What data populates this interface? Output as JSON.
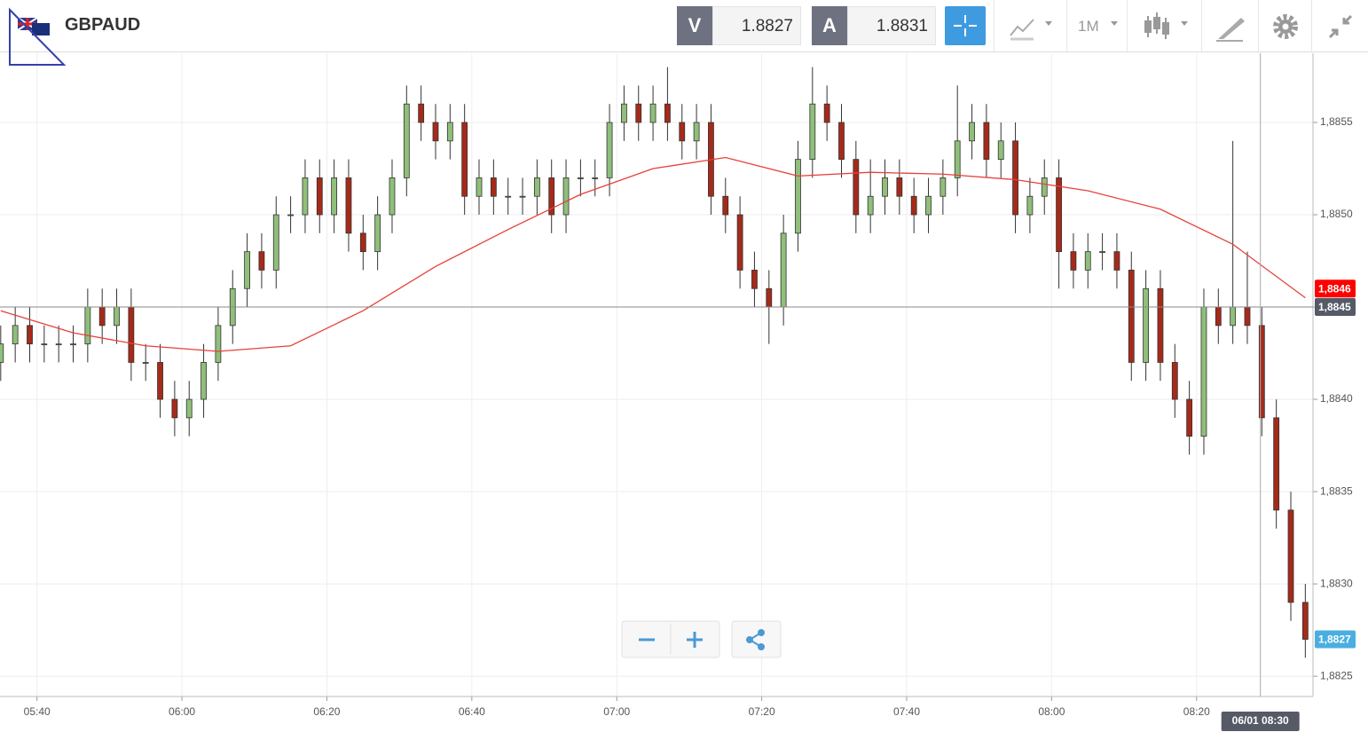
{
  "header": {
    "symbol": "GBPAUD",
    "bid_label": "V",
    "bid": 1.8827,
    "ask_label": "A",
    "ask": 1.8831,
    "timeframe": "1M"
  },
  "chart_data": {
    "type": "candlestick",
    "x": [
      335,
      337,
      339,
      341,
      343,
      345,
      347,
      349,
      351,
      353,
      355,
      357,
      359,
      361,
      363,
      365,
      367,
      369,
      371,
      373,
      375,
      377,
      379,
      381,
      383,
      385,
      387,
      389,
      391,
      393,
      395,
      397,
      399,
      401,
      403,
      405,
      407,
      409,
      411,
      413,
      415,
      417,
      419,
      421,
      423,
      425,
      427,
      429,
      431,
      433,
      435,
      437,
      439,
      441,
      443,
      445,
      447,
      449,
      451,
      453,
      455,
      457,
      459,
      461,
      463,
      465,
      467,
      469,
      471,
      473,
      475,
      477,
      479,
      481,
      483,
      485,
      487,
      489,
      491,
      493,
      495,
      497,
      499,
      501,
      503,
      505,
      507,
      509,
      511,
      513,
      515
    ],
    "open": [
      1.8842,
      1.8843,
      1.8844,
      1.8843,
      1.8843,
      1.8843,
      1.8843,
      1.8845,
      1.8844,
      1.8845,
      1.8842,
      1.8842,
      1.884,
      1.8839,
      1.884,
      1.8842,
      1.8844,
      1.8846,
      1.8848,
      1.8847,
      1.885,
      1.885,
      1.8852,
      1.885,
      1.8852,
      1.8849,
      1.8848,
      1.885,
      1.8852,
      1.8856,
      1.8855,
      1.8854,
      1.8855,
      1.8851,
      1.8852,
      1.8851,
      1.8851,
      1.8851,
      1.8852,
      1.885,
      1.8852,
      1.8852,
      1.8852,
      1.8855,
      1.8856,
      1.8855,
      1.8856,
      1.8855,
      1.8854,
      1.8855,
      1.8851,
      1.885,
      1.8847,
      1.8846,
      1.8845,
      1.8849,
      1.8853,
      1.8856,
      1.8855,
      1.8853,
      1.885,
      1.8851,
      1.8852,
      1.8851,
      1.885,
      1.8851,
      1.8852,
      1.8854,
      1.8855,
      1.8853,
      1.8854,
      1.885,
      1.8851,
      1.8852,
      1.8848,
      1.8847,
      1.8848,
      1.8848,
      1.8847,
      1.8842,
      1.8846,
      1.8842,
      1.884,
      1.8838,
      1.8845,
      1.8844,
      1.8845,
      1.8844,
      1.8839,
      1.8834,
      1.8829
    ],
    "high": [
      1.8844,
      1.8845,
      1.8845,
      1.8844,
      1.8844,
      1.8844,
      1.8846,
      1.8846,
      1.8846,
      1.8846,
      1.8843,
      1.8843,
      1.8841,
      1.8841,
      1.8843,
      1.8845,
      1.8847,
      1.8849,
      1.8849,
      1.8851,
      1.8851,
      1.8853,
      1.8853,
      1.8853,
      1.8853,
      1.885,
      1.8851,
      1.8853,
      1.8857,
      1.8857,
      1.8856,
      1.8856,
      1.8856,
      1.8853,
      1.8853,
      1.8852,
      1.8852,
      1.8853,
      1.8853,
      1.8853,
      1.8853,
      1.8853,
      1.8856,
      1.8857,
      1.8857,
      1.8857,
      1.8858,
      1.8856,
      1.8856,
      1.8856,
      1.8852,
      1.8851,
      1.8848,
      1.8847,
      1.885,
      1.8854,
      1.8858,
      1.8857,
      1.8856,
      1.8854,
      1.8853,
      1.8853,
      1.8853,
      1.8852,
      1.8852,
      1.8853,
      1.8857,
      1.8856,
      1.8856,
      1.8855,
      1.8855,
      1.8852,
      1.8853,
      1.8853,
      1.8849,
      1.8849,
      1.8849,
      1.8849,
      1.8848,
      1.8847,
      1.8847,
      1.8843,
      1.8841,
      1.8846,
      1.8846,
      1.8854,
      1.8848,
      1.8845,
      1.884,
      1.8835,
      1.883
    ],
    "low": [
      1.8841,
      1.8842,
      1.8842,
      1.8842,
      1.8842,
      1.8842,
      1.8842,
      1.8843,
      1.8843,
      1.8841,
      1.8841,
      1.8839,
      1.8838,
      1.8838,
      1.8839,
      1.8841,
      1.8843,
      1.8845,
      1.8846,
      1.8846,
      1.8849,
      1.8849,
      1.8849,
      1.8849,
      1.8848,
      1.8847,
      1.8847,
      1.8849,
      1.8851,
      1.8854,
      1.8853,
      1.8853,
      1.885,
      1.885,
      1.885,
      1.885,
      1.885,
      1.885,
      1.8849,
      1.8849,
      1.8851,
      1.8851,
      1.8851,
      1.8854,
      1.8854,
      1.8854,
      1.8854,
      1.8853,
      1.8853,
      1.885,
      1.8849,
      1.8846,
      1.8845,
      1.8843,
      1.8844,
      1.8848,
      1.8852,
      1.8854,
      1.8852,
      1.8849,
      1.8849,
      1.885,
      1.885,
      1.8849,
      1.8849,
      1.885,
      1.8851,
      1.8853,
      1.8852,
      1.8852,
      1.8849,
      1.8849,
      1.885,
      1.8846,
      1.8846,
      1.8846,
      1.8847,
      1.8846,
      1.8841,
      1.8841,
      1.8841,
      1.8839,
      1.8837,
      1.8837,
      1.8843,
      1.8843,
      1.8843,
      1.8838,
      1.8833,
      1.8828,
      1.8826
    ],
    "close": [
      1.8843,
      1.8844,
      1.8843,
      1.8843,
      1.8843,
      1.8843,
      1.8845,
      1.8844,
      1.8845,
      1.8842,
      1.8842,
      1.884,
      1.8839,
      1.884,
      1.8842,
      1.8844,
      1.8846,
      1.8848,
      1.8847,
      1.885,
      1.885,
      1.8852,
      1.885,
      1.8852,
      1.8849,
      1.8848,
      1.885,
      1.8852,
      1.8856,
      1.8855,
      1.8854,
      1.8855,
      1.8851,
      1.8852,
      1.8851,
      1.8851,
      1.8851,
      1.8852,
      1.885,
      1.8852,
      1.8852,
      1.8852,
      1.8855,
      1.8856,
      1.8855,
      1.8856,
      1.8855,
      1.8854,
      1.8855,
      1.8851,
      1.885,
      1.8847,
      1.8846,
      1.8845,
      1.8849,
      1.8853,
      1.8856,
      1.8855,
      1.8853,
      1.885,
      1.8851,
      1.8852,
      1.8851,
      1.885,
      1.8851,
      1.8852,
      1.8854,
      1.8855,
      1.8853,
      1.8854,
      1.885,
      1.8851,
      1.8852,
      1.8848,
      1.8847,
      1.8848,
      1.8848,
      1.8847,
      1.8842,
      1.8846,
      1.8842,
      1.884,
      1.8838,
      1.8845,
      1.8844,
      1.8845,
      1.8844,
      1.8839,
      1.8834,
      1.8829,
      1.8827
    ],
    "up_color": "#8fbf7a",
    "down_color": "#a52a1a",
    "ma": {
      "color": "#e8403a",
      "x": [
        335,
        345,
        355,
        365,
        375,
        385,
        395,
        405,
        415,
        425,
        435,
        445,
        455,
        465,
        475,
        485,
        495,
        505,
        515
      ],
      "values": [
        1.88448,
        1.88436,
        1.88429,
        1.88426,
        1.88429,
        1.88448,
        1.88472,
        1.88492,
        1.88511,
        1.88525,
        1.88531,
        1.88521,
        1.88523,
        1.88522,
        1.88519,
        1.88513,
        1.88503,
        1.88484,
        1.88455
      ]
    },
    "xlim": [
      334.9,
      516.06
    ],
    "xticks": [
      {
        "value": 340,
        "label": "05:40"
      },
      {
        "value": 360,
        "label": "06:00"
      },
      {
        "value": 380,
        "label": "06:20"
      },
      {
        "value": 400,
        "label": "06:40"
      },
      {
        "value": 420,
        "label": "07:00"
      },
      {
        "value": 440,
        "label": "07:20"
      },
      {
        "value": 460,
        "label": "07:40"
      },
      {
        "value": 480,
        "label": "08:00"
      },
      {
        "value": 500,
        "label": "08:20"
      }
    ],
    "ylim": [
      1.88239,
      1.885875
    ],
    "yticks": [
      {
        "value": 1.8825,
        "label": "1,8825"
      },
      {
        "value": 1.883,
        "label": "1,8830"
      },
      {
        "value": 1.8835,
        "label": "1,8835"
      },
      {
        "value": 1.884,
        "label": "1,8840"
      },
      {
        "value": 1.8845,
        "label": "1,8845"
      },
      {
        "value": 1.885,
        "label": "1,8850"
      },
      {
        "value": 1.8855,
        "label": "1,8855"
      }
    ],
    "grid": true,
    "ma_tag": {
      "value": 1.8846,
      "label": "1,8846"
    },
    "price_line": {
      "value": 1.8845,
      "label": "1,8845"
    },
    "last_price": {
      "value": 1.8827,
      "label": "1,8827"
    },
    "crosshair": {
      "x": 508.8,
      "label": "06/01 08:30"
    }
  }
}
